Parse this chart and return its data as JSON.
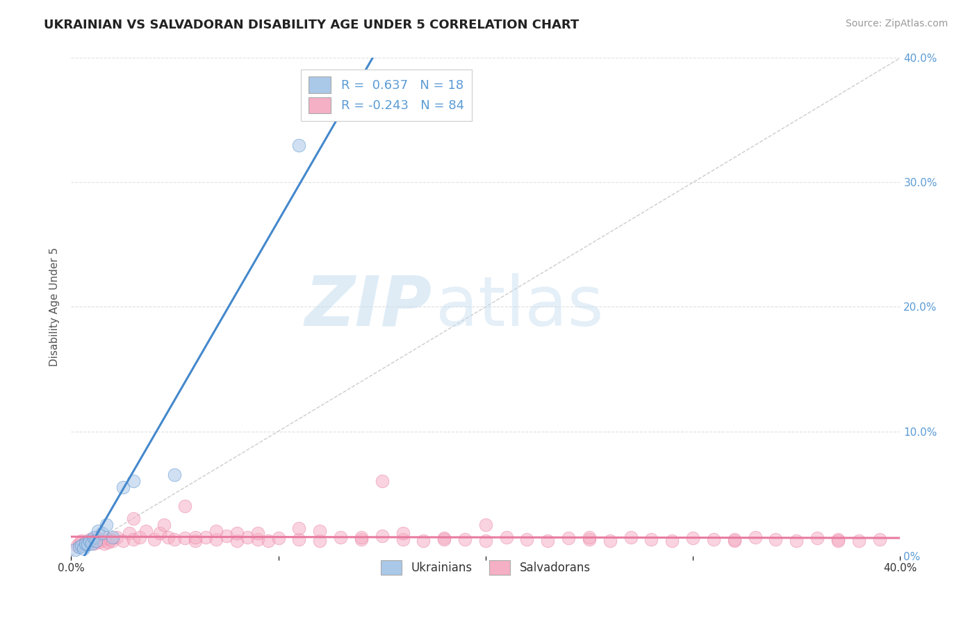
{
  "title": "UKRAINIAN VS SALVADORAN DISABILITY AGE UNDER 5 CORRELATION CHART",
  "source": "Source: ZipAtlas.com",
  "ylabel": "Disability Age Under 5",
  "xlim": [
    0.0,
    0.4
  ],
  "ylim": [
    0.0,
    0.4
  ],
  "xticks": [
    0.0,
    0.1,
    0.2,
    0.3,
    0.4
  ],
  "yticks": [
    0.0,
    0.1,
    0.2,
    0.3,
    0.4
  ],
  "ukrainian_color": "#aac8e8",
  "salvadoran_color": "#f5b0c5",
  "ukrainian_line_color": "#4488cc",
  "salvadoran_line_color": "#e87aa0",
  "R_ukrainian": 0.637,
  "N_ukrainian": 18,
  "R_salvadoran": -0.243,
  "N_salvadoran": 84,
  "legend_label_ukrainian": "Ukrainians",
  "legend_label_salvadoran": "Salvadorans",
  "ukrainian_scatter_x": [
    0.002,
    0.004,
    0.005,
    0.006,
    0.007,
    0.008,
    0.009,
    0.01,
    0.011,
    0.012,
    0.013,
    0.015,
    0.017,
    0.02,
    0.025,
    0.03,
    0.05,
    0.11
  ],
  "ukrainian_scatter_y": [
    0.005,
    0.007,
    0.008,
    0.006,
    0.01,
    0.009,
    0.012,
    0.01,
    0.015,
    0.012,
    0.02,
    0.018,
    0.025,
    0.015,
    0.055,
    0.06,
    0.065,
    0.33
  ],
  "salvadoran_scatter_x": [
    0.003,
    0.004,
    0.005,
    0.006,
    0.007,
    0.008,
    0.009,
    0.01,
    0.011,
    0.012,
    0.013,
    0.014,
    0.015,
    0.016,
    0.017,
    0.018,
    0.019,
    0.02,
    0.022,
    0.025,
    0.028,
    0.03,
    0.033,
    0.036,
    0.04,
    0.043,
    0.047,
    0.05,
    0.055,
    0.06,
    0.065,
    0.07,
    0.075,
    0.08,
    0.085,
    0.09,
    0.095,
    0.1,
    0.11,
    0.12,
    0.13,
    0.14,
    0.15,
    0.16,
    0.17,
    0.18,
    0.19,
    0.2,
    0.21,
    0.22,
    0.23,
    0.24,
    0.25,
    0.26,
    0.27,
    0.28,
    0.29,
    0.3,
    0.31,
    0.32,
    0.33,
    0.34,
    0.35,
    0.36,
    0.37,
    0.38,
    0.39,
    0.03,
    0.045,
    0.055,
    0.07,
    0.09,
    0.11,
    0.15,
    0.2,
    0.06,
    0.08,
    0.12,
    0.14,
    0.16,
    0.18,
    0.25,
    0.32,
    0.37
  ],
  "salvadoran_scatter_y": [
    0.008,
    0.01,
    0.012,
    0.009,
    0.011,
    0.01,
    0.013,
    0.012,
    0.01,
    0.015,
    0.011,
    0.013,
    0.012,
    0.01,
    0.014,
    0.011,
    0.013,
    0.012,
    0.015,
    0.012,
    0.018,
    0.013,
    0.015,
    0.02,
    0.013,
    0.018,
    0.015,
    0.013,
    0.014,
    0.012,
    0.015,
    0.013,
    0.016,
    0.012,
    0.015,
    0.013,
    0.012,
    0.014,
    0.013,
    0.012,
    0.015,
    0.013,
    0.06,
    0.013,
    0.012,
    0.014,
    0.013,
    0.012,
    0.015,
    0.013,
    0.012,
    0.014,
    0.013,
    0.012,
    0.015,
    0.013,
    0.012,
    0.014,
    0.013,
    0.012,
    0.015,
    0.013,
    0.012,
    0.014,
    0.013,
    0.012,
    0.013,
    0.03,
    0.025,
    0.04,
    0.02,
    0.018,
    0.022,
    0.016,
    0.025,
    0.015,
    0.018,
    0.02,
    0.015,
    0.018,
    0.013,
    0.015,
    0.013,
    0.012
  ],
  "watermark_zip": "ZIP",
  "watermark_atlas": "atlas",
  "background_color": "#ffffff",
  "grid_color": "#e0e0e0",
  "title_color": "#222222",
  "axis_label_color": "#555555",
  "right_tick_color": "#5b9bd5",
  "legend_text_color": "#5b9bd5",
  "ref_line_color": "#cccccc",
  "title_fontsize": 13,
  "source_fontsize": 10,
  "tick_fontsize": 11,
  "ylabel_fontsize": 11,
  "legend_fontsize": 13,
  "scatter_size": 180,
  "scatter_alpha": 0.55,
  "line_width": 2.2
}
